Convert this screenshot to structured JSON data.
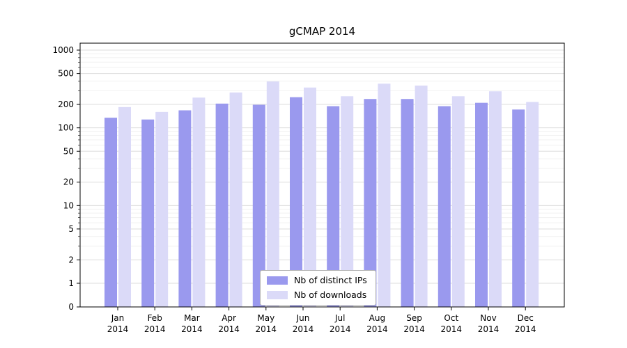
{
  "chart_data": {
    "type": "bar",
    "title": "gCMAP 2014",
    "categories": [
      "Jan",
      "Feb",
      "Mar",
      "Apr",
      "May",
      "Jun",
      "Jul",
      "Aug",
      "Sep",
      "Oct",
      "Nov",
      "Dec"
    ],
    "year_label": "2014",
    "series": [
      {
        "name": "Nb of distinct IPs",
        "color": "#9a99ee",
        "values": [
          135,
          128,
          168,
          205,
          198,
          248,
          190,
          235,
          235,
          190,
          210,
          172
        ]
      },
      {
        "name": "Nb of downloads",
        "color": "#dbdaf8",
        "values": [
          185,
          160,
          245,
          285,
          395,
          330,
          255,
          370,
          350,
          255,
          295,
          215
        ]
      }
    ],
    "y_ticks": [
      0,
      1,
      2,
      5,
      10,
      20,
      50,
      100,
      200,
      500,
      1000
    ],
    "y_minor_ticks": [
      3,
      4,
      6,
      7,
      8,
      9,
      30,
      40,
      60,
      70,
      80,
      90,
      300,
      400,
      600,
      700,
      800,
      900
    ],
    "scale": "log",
    "ylim": [
      0,
      1000
    ],
    "grid": true,
    "legend_position": "bottom-center"
  }
}
